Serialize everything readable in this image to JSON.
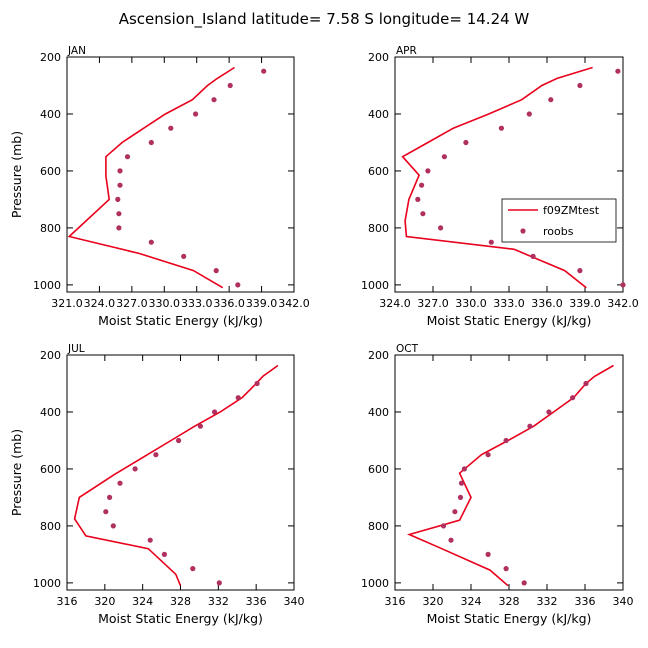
{
  "figure": {
    "title": "Ascension_Island  latitude= 7.58 S longitude= 14.24 W"
  },
  "legend": {
    "model_label": "f09ZMtest",
    "obs_label": "roobs",
    "model_color": "#e8001c",
    "obs_color": "#b03060"
  },
  "chart_data": [
    {
      "type": "line",
      "panel_label": "JAN",
      "xlabel": "Moist Static Energy (kJ/kg)",
      "ylabel": "Pressure (mb)",
      "xlim": [
        321.0,
        342.0
      ],
      "xticks": [
        321.0,
        324.0,
        327.0,
        330.0,
        333.0,
        336.0,
        339.0,
        342.0
      ],
      "xtick_labels": [
        "321.0",
        "324.0",
        "327.0",
        "330.0",
        "333.0",
        "336.0",
        "339.0",
        "342.0"
      ],
      "ylim": [
        200,
        1025
      ],
      "y_inverted": true,
      "yticks": [
        200,
        400,
        600,
        800,
        1000
      ],
      "ytick_labels": [
        "200",
        "400",
        "600",
        "800",
        "1000"
      ],
      "series": [
        {
          "name": "f09ZMtest",
          "style": "line",
          "x": [
            336.5,
            334.9,
            334.0,
            332.6,
            330.1,
            328.1,
            326.1,
            324.6,
            324.6,
            324.9,
            321.2,
            327.7,
            332.7,
            335.4
          ],
          "y": [
            237,
            275,
            300,
            350,
            400,
            450,
            500,
            550,
            618,
            700,
            830,
            890,
            950,
            1010
          ]
        },
        {
          "name": "roobs",
          "style": "markers",
          "x": [
            339.2,
            336.1,
            334.6,
            332.9,
            330.6,
            328.8,
            326.6,
            325.9,
            325.9,
            325.7,
            325.8,
            325.8,
            328.8,
            331.8,
            334.8,
            336.8
          ],
          "y": [
            250,
            300,
            350,
            400,
            450,
            500,
            550,
            600,
            650,
            700,
            750,
            800,
            850,
            900,
            950,
            1000
          ]
        }
      ]
    },
    {
      "type": "line",
      "panel_label": "APR",
      "xlabel": "Moist Static Energy (kJ/kg)",
      "ylabel": "",
      "xlim": [
        324.0,
        342.0
      ],
      "xticks": [
        324.0,
        327.0,
        330.0,
        333.0,
        336.0,
        339.0,
        342.0
      ],
      "xtick_labels": [
        "324.0",
        "327.0",
        "330.0",
        "333.0",
        "336.0",
        "339.0",
        "342.0"
      ],
      "ylim": [
        200,
        1025
      ],
      "y_inverted": true,
      "yticks": [
        200,
        400,
        600,
        800,
        1000
      ],
      "ytick_labels": [
        "200",
        "400",
        "600",
        "800",
        "1000"
      ],
      "series": [
        {
          "name": "f09ZMtest",
          "style": "line",
          "x": [
            339.6,
            336.8,
            335.6,
            334.0,
            331.4,
            328.6,
            326.6,
            324.6,
            325.9,
            325.1,
            324.8,
            324.9,
            333.4,
            337.4,
            339.1
          ],
          "y": [
            237,
            275,
            300,
            350,
            400,
            450,
            500,
            550,
            615,
            700,
            775,
            830,
            875,
            950,
            1010
          ]
        },
        {
          "name": "roobs",
          "style": "markers",
          "x": [
            341.6,
            338.6,
            336.3,
            334.6,
            332.4,
            329.6,
            327.9,
            326.6,
            326.1,
            325.8,
            326.2,
            327.6,
            331.6,
            334.9,
            338.6,
            342.0
          ],
          "y": [
            250,
            300,
            350,
            400,
            450,
            500,
            550,
            600,
            650,
            700,
            750,
            800,
            850,
            900,
            950,
            1000
          ]
        }
      ]
    },
    {
      "type": "line",
      "panel_label": "JUL",
      "xlabel": "Moist Static Energy (kJ/kg)",
      "ylabel": "Pressure (mb)",
      "xlim": [
        316,
        340
      ],
      "xticks": [
        316,
        320,
        324,
        328,
        332,
        336,
        340
      ],
      "xtick_labels": [
        "316",
        "320",
        "324",
        "328",
        "332",
        "336",
        "340"
      ],
      "ylim": [
        200,
        1025
      ],
      "y_inverted": true,
      "yticks": [
        200,
        400,
        600,
        800,
        1000
      ],
      "ytick_labels": [
        "200",
        "400",
        "600",
        "800",
        "1000"
      ],
      "series": [
        {
          "name": "f09ZMtest",
          "style": "line",
          "x": [
            338.3,
            336.7,
            336.0,
            334.5,
            332.2,
            329.5,
            327.0,
            324.5,
            321.0,
            317.3,
            316.8,
            318.0,
            324.6,
            327.5,
            328.0
          ],
          "y": [
            237,
            275,
            300,
            350,
            400,
            450,
            500,
            550,
            620,
            700,
            775,
            835,
            880,
            970,
            1010
          ]
        },
        {
          "name": "roobs",
          "style": "markers",
          "x": [
            336.1,
            334.1,
            331.6,
            330.1,
            327.8,
            325.4,
            323.2,
            321.6,
            320.5,
            320.1,
            320.9,
            324.8,
            326.3,
            329.3,
            332.1
          ],
          "y": [
            300,
            350,
            400,
            450,
            500,
            550,
            600,
            650,
            700,
            750,
            800,
            850,
            900,
            950,
            1000
          ]
        }
      ]
    },
    {
      "type": "line",
      "panel_label": "OCT",
      "xlabel": "Moist Static Energy (kJ/kg)",
      "ylabel": "",
      "xlim": [
        316,
        340
      ],
      "xticks": [
        316,
        320,
        324,
        328,
        332,
        336,
        340
      ],
      "xtick_labels": [
        "316",
        "320",
        "324",
        "328",
        "332",
        "336",
        "340"
      ],
      "ylim": [
        200,
        1025
      ],
      "y_inverted": true,
      "yticks": [
        200,
        400,
        600,
        800,
        1000
      ],
      "ytick_labels": [
        "200",
        "400",
        "600",
        "800",
        "1000"
      ],
      "series": [
        {
          "name": "f09ZMtest",
          "style": "line",
          "x": [
            339.0,
            337.0,
            336.1,
            334.8,
            332.7,
            330.6,
            327.9,
            325.1,
            322.8,
            324.0,
            322.8,
            317.5,
            320.6,
            326.0,
            327.9
          ],
          "y": [
            237,
            275,
            300,
            350,
            400,
            450,
            500,
            550,
            615,
            700,
            780,
            830,
            875,
            955,
            1010
          ]
        },
        {
          "name": "roobs",
          "style": "markers",
          "x": [
            336.1,
            334.7,
            332.2,
            330.2,
            327.7,
            325.8,
            323.3,
            323.0,
            322.9,
            322.3,
            321.1,
            321.9,
            325.8,
            327.7,
            329.6
          ],
          "y": [
            300,
            350,
            400,
            450,
            500,
            550,
            600,
            650,
            700,
            750,
            800,
            850,
            900,
            950,
            1000
          ]
        }
      ]
    }
  ]
}
